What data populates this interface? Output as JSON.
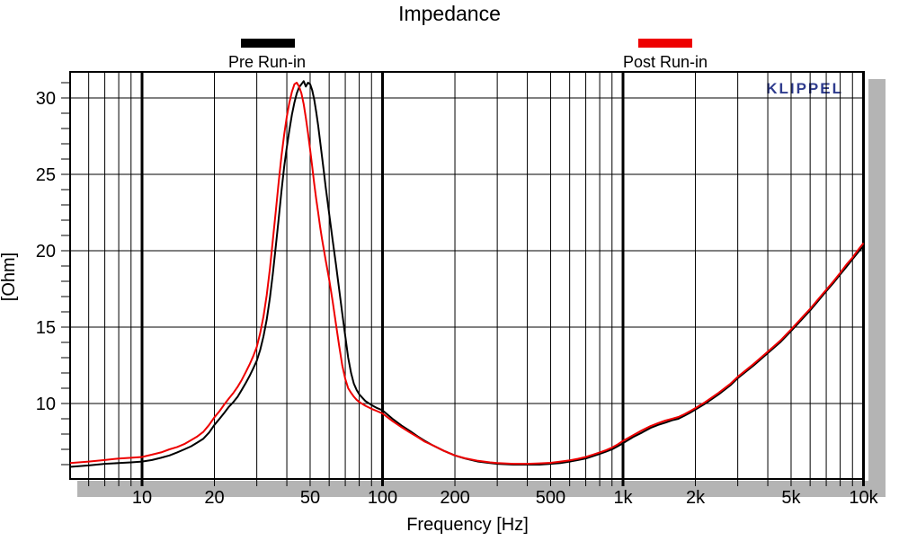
{
  "watermark": "KLIPPEL",
  "colors": {
    "background": "#ffffff",
    "grid": "#000000",
    "frame": "#000000",
    "shadow": "#b4b4b4",
    "watermark_blue": "#2f3c8e",
    "pre_run_in": "#000000",
    "post_run_in": "#ee0000"
  },
  "legend": [
    {
      "label": "Pre Run-in",
      "color": "#000000"
    },
    {
      "label": "Post Run-in",
      "color": "#ee0000"
    }
  ],
  "chart_data": {
    "type": "line",
    "title": "Impedance",
    "xlabel": "Frequency [Hz]",
    "ylabel": "[Ohm]",
    "x_scale": "log",
    "x_range_hz": [
      5,
      10000
    ],
    "y_range_ohm": [
      5,
      31.7
    ],
    "grid": true,
    "legend_position": "top",
    "x_ticks": [
      {
        "f": 10,
        "label": "10"
      },
      {
        "f": 20,
        "label": "20"
      },
      {
        "f": 50,
        "label": "50"
      },
      {
        "f": 100,
        "label": "100"
      },
      {
        "f": 200,
        "label": "200"
      },
      {
        "f": 500,
        "label": "500"
      },
      {
        "f": 1000,
        "label": "1k"
      },
      {
        "f": 2000,
        "label": "2k"
      },
      {
        "f": 5000,
        "label": "5k"
      },
      {
        "f": 10000,
        "label": "10k"
      }
    ],
    "y_ticks": [
      {
        "v": 10,
        "label": "10"
      },
      {
        "v": 15,
        "label": "15"
      },
      {
        "v": 20,
        "label": "20"
      },
      {
        "v": 25,
        "label": "25"
      },
      {
        "v": 30,
        "label": "30"
      }
    ],
    "x_gridlines_major": [
      10,
      100,
      1000,
      10000
    ],
    "x_gridlines_minor": [
      6,
      7,
      8,
      9,
      20,
      30,
      40,
      50,
      60,
      70,
      80,
      90,
      200,
      300,
      400,
      500,
      600,
      700,
      800,
      900,
      2000,
      3000,
      4000,
      5000,
      6000,
      7000,
      8000,
      9000
    ],
    "y_gridlines": [
      10,
      15,
      20,
      25,
      30
    ],
    "y_minor_tick_step_ohm": 1,
    "series": [
      {
        "name": "Pre Run-in",
        "color": "#000000",
        "points": [
          [
            5,
            5.85
          ],
          [
            6,
            5.95
          ],
          [
            7,
            6.05
          ],
          [
            8,
            6.1
          ],
          [
            9,
            6.15
          ],
          [
            10,
            6.2
          ],
          [
            11,
            6.3
          ],
          [
            12,
            6.45
          ],
          [
            13,
            6.6
          ],
          [
            14,
            6.8
          ],
          [
            15,
            7.0
          ],
          [
            16,
            7.2
          ],
          [
            17,
            7.45
          ],
          [
            18,
            7.7
          ],
          [
            19,
            8.1
          ],
          [
            20,
            8.6
          ],
          [
            21,
            9.0
          ],
          [
            22,
            9.4
          ],
          [
            23,
            9.8
          ],
          [
            24,
            10.1
          ],
          [
            25,
            10.45
          ],
          [
            26,
            10.9
          ],
          [
            27,
            11.35
          ],
          [
            28,
            11.8
          ],
          [
            29,
            12.3
          ],
          [
            30,
            12.8
          ],
          [
            31,
            13.5
          ],
          [
            32,
            14.4
          ],
          [
            33,
            15.5
          ],
          [
            34,
            16.9
          ],
          [
            35,
            18.5
          ],
          [
            36,
            20.3
          ],
          [
            37,
            22.1
          ],
          [
            38,
            23.9
          ],
          [
            39,
            25.5
          ],
          [
            40,
            26.8
          ],
          [
            41,
            27.9
          ],
          [
            42,
            28.9
          ],
          [
            43,
            29.7
          ],
          [
            44,
            30.3
          ],
          [
            45,
            30.7
          ],
          [
            46,
            30.9
          ],
          [
            47,
            31.1
          ],
          [
            48,
            30.75
          ],
          [
            49,
            31.0
          ],
          [
            50,
            30.9
          ],
          [
            51,
            30.5
          ],
          [
            52,
            29.9
          ],
          [
            53,
            29.1
          ],
          [
            54,
            28.2
          ],
          [
            55,
            27.2
          ],
          [
            56,
            26.2
          ],
          [
            57,
            25.2
          ],
          [
            58,
            24.2
          ],
          [
            60,
            22.4
          ],
          [
            62,
            20.7
          ],
          [
            64,
            19.1
          ],
          [
            66,
            17.5
          ],
          [
            68,
            15.9
          ],
          [
            70,
            14.4
          ],
          [
            72,
            13.0
          ],
          [
            74,
            12.0
          ],
          [
            76,
            11.3
          ],
          [
            78,
            10.9
          ],
          [
            80,
            10.6
          ],
          [
            85,
            10.15
          ],
          [
            90,
            9.9
          ],
          [
            95,
            9.7
          ],
          [
            100,
            9.55
          ],
          [
            110,
            9.0
          ],
          [
            120,
            8.55
          ],
          [
            130,
            8.2
          ],
          [
            140,
            7.85
          ],
          [
            150,
            7.55
          ],
          [
            160,
            7.3
          ],
          [
            180,
            6.9
          ],
          [
            200,
            6.6
          ],
          [
            220,
            6.4
          ],
          [
            250,
            6.2
          ],
          [
            280,
            6.1
          ],
          [
            300,
            6.05
          ],
          [
            350,
            6.0
          ],
          [
            400,
            6.0
          ],
          [
            450,
            6.0
          ],
          [
            500,
            6.05
          ],
          [
            550,
            6.1
          ],
          [
            600,
            6.2
          ],
          [
            650,
            6.3
          ],
          [
            700,
            6.4
          ],
          [
            750,
            6.55
          ],
          [
            800,
            6.7
          ],
          [
            850,
            6.85
          ],
          [
            900,
            7.0
          ],
          [
            950,
            7.2
          ],
          [
            1000,
            7.4
          ],
          [
            1100,
            7.8
          ],
          [
            1200,
            8.1
          ],
          [
            1300,
            8.4
          ],
          [
            1400,
            8.6
          ],
          [
            1500,
            8.75
          ],
          [
            1600,
            8.9
          ],
          [
            1700,
            9.0
          ],
          [
            1800,
            9.2
          ],
          [
            1900,
            9.4
          ],
          [
            2000,
            9.6
          ],
          [
            2200,
            10.0
          ],
          [
            2500,
            10.6
          ],
          [
            2800,
            11.2
          ],
          [
            3000,
            11.65
          ],
          [
            3500,
            12.5
          ],
          [
            4000,
            13.3
          ],
          [
            4500,
            14.0
          ],
          [
            5000,
            14.75
          ],
          [
            5500,
            15.45
          ],
          [
            6000,
            16.1
          ],
          [
            6500,
            16.75
          ],
          [
            7000,
            17.35
          ],
          [
            7500,
            17.9
          ],
          [
            8000,
            18.45
          ],
          [
            8500,
            18.95
          ],
          [
            9000,
            19.45
          ],
          [
            9500,
            19.9
          ],
          [
            10000,
            20.3
          ]
        ]
      },
      {
        "name": "Post Run-in",
        "color": "#ee0000",
        "points": [
          [
            5,
            6.1
          ],
          [
            6,
            6.2
          ],
          [
            7,
            6.3
          ],
          [
            8,
            6.4
          ],
          [
            9,
            6.45
          ],
          [
            10,
            6.5
          ],
          [
            11,
            6.65
          ],
          [
            12,
            6.8
          ],
          [
            13,
            7.0
          ],
          [
            14,
            7.15
          ],
          [
            15,
            7.35
          ],
          [
            16,
            7.6
          ],
          [
            17,
            7.85
          ],
          [
            18,
            8.15
          ],
          [
            19,
            8.6
          ],
          [
            20,
            9.1
          ],
          [
            21,
            9.5
          ],
          [
            22,
            9.95
          ],
          [
            23,
            10.35
          ],
          [
            24,
            10.7
          ],
          [
            25,
            11.1
          ],
          [
            26,
            11.55
          ],
          [
            27,
            12.05
          ],
          [
            28,
            12.55
          ],
          [
            29,
            13.1
          ],
          [
            30,
            13.7
          ],
          [
            31,
            14.6
          ],
          [
            32,
            15.7
          ],
          [
            33,
            17.1
          ],
          [
            34,
            18.8
          ],
          [
            35,
            20.7
          ],
          [
            36,
            22.6
          ],
          [
            37,
            24.5
          ],
          [
            38,
            26.2
          ],
          [
            39,
            27.6
          ],
          [
            40,
            28.8
          ],
          [
            41,
            29.7
          ],
          [
            42,
            30.4
          ],
          [
            43,
            30.9
          ],
          [
            44,
            31.0
          ],
          [
            45,
            30.75
          ],
          [
            46,
            30.3
          ],
          [
            47,
            29.6
          ],
          [
            48,
            28.7
          ],
          [
            49,
            27.7
          ],
          [
            50,
            26.6
          ],
          [
            51,
            25.5
          ],
          [
            52,
            24.4
          ],
          [
            53,
            23.4
          ],
          [
            54,
            22.5
          ],
          [
            55,
            21.6
          ],
          [
            56,
            20.8
          ],
          [
            58,
            19.4
          ],
          [
            60,
            18.1
          ],
          [
            62,
            16.7
          ],
          [
            64,
            15.2
          ],
          [
            66,
            13.8
          ],
          [
            68,
            12.5
          ],
          [
            70,
            11.6
          ],
          [
            72,
            11.0
          ],
          [
            74,
            10.7
          ],
          [
            76,
            10.45
          ],
          [
            78,
            10.25
          ],
          [
            80,
            10.1
          ],
          [
            85,
            9.85
          ],
          [
            90,
            9.65
          ],
          [
            95,
            9.5
          ],
          [
            100,
            9.35
          ],
          [
            110,
            8.85
          ],
          [
            120,
            8.45
          ],
          [
            130,
            8.1
          ],
          [
            140,
            7.8
          ],
          [
            150,
            7.5
          ],
          [
            160,
            7.3
          ],
          [
            180,
            6.9
          ],
          [
            200,
            6.6
          ],
          [
            220,
            6.42
          ],
          [
            250,
            6.25
          ],
          [
            280,
            6.15
          ],
          [
            300,
            6.1
          ],
          [
            350,
            6.05
          ],
          [
            400,
            6.05
          ],
          [
            450,
            6.08
          ],
          [
            500,
            6.12
          ],
          [
            550,
            6.2
          ],
          [
            600,
            6.28
          ],
          [
            650,
            6.38
          ],
          [
            700,
            6.5
          ],
          [
            750,
            6.65
          ],
          [
            800,
            6.8
          ],
          [
            850,
            6.95
          ],
          [
            900,
            7.12
          ],
          [
            950,
            7.32
          ],
          [
            1000,
            7.55
          ],
          [
            1100,
            7.92
          ],
          [
            1200,
            8.25
          ],
          [
            1300,
            8.52
          ],
          [
            1400,
            8.72
          ],
          [
            1500,
            8.88
          ],
          [
            1600,
            9.0
          ],
          [
            1700,
            9.12
          ],
          [
            1800,
            9.3
          ],
          [
            1900,
            9.5
          ],
          [
            2000,
            9.7
          ],
          [
            2200,
            10.1
          ],
          [
            2500,
            10.7
          ],
          [
            2800,
            11.3
          ],
          [
            3000,
            11.75
          ],
          [
            3500,
            12.6
          ],
          [
            4000,
            13.4
          ],
          [
            4500,
            14.1
          ],
          [
            5000,
            14.85
          ],
          [
            5500,
            15.55
          ],
          [
            6000,
            16.2
          ],
          [
            6500,
            16.85
          ],
          [
            7000,
            17.45
          ],
          [
            7500,
            18.0
          ],
          [
            8000,
            18.55
          ],
          [
            8500,
            19.1
          ],
          [
            9000,
            19.55
          ],
          [
            9500,
            20.05
          ],
          [
            10000,
            20.5
          ]
        ]
      }
    ]
  }
}
